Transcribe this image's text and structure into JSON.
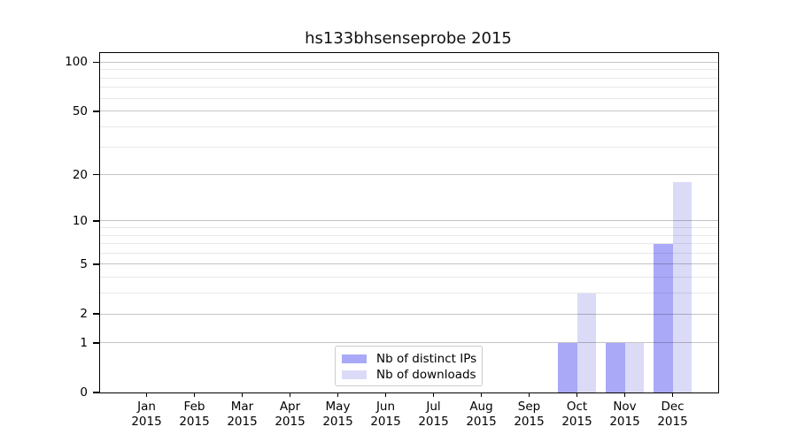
{
  "chart_data": {
    "type": "bar",
    "title": "hs133bhsenseprobe 2015",
    "categories": [
      "Jan 2015",
      "Feb 2015",
      "Mar 2015",
      "Apr 2015",
      "May 2015",
      "Jun 2015",
      "Jul 2015",
      "Aug 2015",
      "Sep 2015",
      "Oct 2015",
      "Nov 2015",
      "Dec 2015"
    ],
    "months": [
      "Jan",
      "Feb",
      "Mar",
      "Apr",
      "May",
      "Jun",
      "Jul",
      "Aug",
      "Sep",
      "Oct",
      "Nov",
      "Dec"
    ],
    "year": "2015",
    "series": [
      {
        "name": "Nb of distinct IPs",
        "color": "#a9a9f8",
        "values": [
          0,
          0,
          0,
          0,
          0,
          0,
          0,
          0,
          0,
          1,
          1,
          7
        ]
      },
      {
        "name": "Nb of downloads",
        "color": "#dbdbf8",
        "values": [
          0,
          0,
          0,
          0,
          0,
          0,
          0,
          0,
          0,
          3,
          1,
          18
        ]
      }
    ],
    "xlabel": "",
    "ylabel": "",
    "yscale": "log1p (position proportional to log10(value+1))",
    "ylim": [
      0,
      113
    ],
    "y_major_ticks": [
      0,
      1,
      2,
      5,
      10,
      20,
      50,
      100
    ],
    "y_tick_labels": [
      "0",
      "1",
      "2",
      "5",
      "10",
      "20",
      "50",
      "100"
    ],
    "y_minor_gridlines": [
      3,
      4,
      6,
      7,
      8,
      9,
      30,
      40,
      60,
      70,
      80,
      90
    ],
    "grid": "horizontal, major and minor",
    "legend_position": "inside bottom-center"
  },
  "colors": {
    "bar_distinct_ips": "#a9a9f8",
    "bar_downloads": "#dbdbf8",
    "grid_major": "#c6c6c6",
    "grid_minor": "#ebebeb",
    "legend_border": "#cccccc",
    "axis": "#000000",
    "background": "#ffffff"
  }
}
